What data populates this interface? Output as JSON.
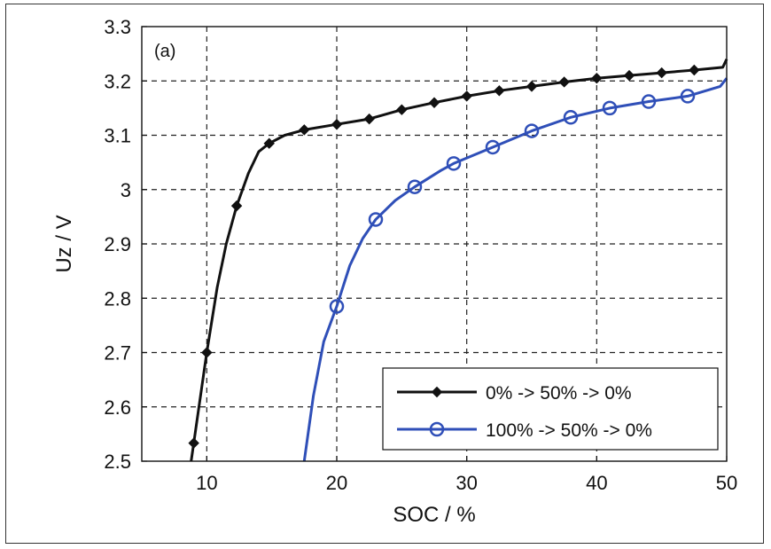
{
  "chart_data": {
    "type": "line",
    "panel_label": "(a)",
    "xlabel": "SOC / %",
    "ylabel": "Uz / V",
    "xlim": [
      5,
      50
    ],
    "ylim": [
      2.5,
      3.3
    ],
    "xticks": [
      10,
      20,
      30,
      40,
      50
    ],
    "yticks": [
      2.5,
      2.6,
      2.7,
      2.8,
      2.9,
      3,
      3.1,
      3.2,
      3.3
    ],
    "ytick_labels": [
      "2.5",
      "2.6",
      "2.7",
      "2.8",
      "2.9",
      "3",
      "3.1",
      "3.2",
      "3.3"
    ],
    "grid": true,
    "legend_position": "bottom-right",
    "series": [
      {
        "name": "0% -> 50% -> 0%",
        "color": "#111111",
        "marker": "diamond-filled",
        "x": [
          8.8,
          9.4,
          10.0,
          10.8,
          11.5,
          12.3,
          13.2,
          14.0,
          14.8,
          16.0,
          17.5,
          20,
          22.5,
          25,
          27.5,
          30,
          32.5,
          35,
          37.5,
          40,
          42.5,
          45,
          47.5,
          49.7,
          50
        ],
        "y": [
          2.5,
          2.6,
          2.7,
          2.82,
          2.9,
          2.97,
          3.03,
          3.07,
          3.085,
          3.1,
          3.11,
          3.12,
          3.13,
          3.147,
          3.16,
          3.172,
          3.182,
          3.19,
          3.198,
          3.205,
          3.21,
          3.215,
          3.22,
          3.225,
          3.24
        ]
      },
      {
        "name": "100% -> 50% -> 0%",
        "color": "#2f4fb8",
        "marker": "circle-open",
        "x": [
          17.5,
          18.2,
          19.0,
          20.0,
          21.0,
          22.0,
          23.0,
          24.5,
          26.0,
          28.0,
          29.0,
          32.0,
          35.0,
          38.0,
          41.0,
          44.0,
          47.0,
          49.5,
          50
        ],
        "y": [
          2.5,
          2.62,
          2.72,
          2.785,
          2.86,
          2.91,
          2.945,
          2.98,
          3.005,
          3.035,
          3.048,
          3.078,
          3.108,
          3.133,
          3.15,
          3.162,
          3.172,
          3.19,
          3.205
        ]
      }
    ],
    "marker_x": [
      [
        9.0,
        10.0,
        12.3,
        14.8,
        17.5,
        20,
        22.5,
        25,
        27.5,
        30,
        32.5,
        35,
        37.5,
        40,
        42.5,
        45,
        47.5
      ],
      [
        20,
        23,
        26,
        29,
        32,
        35,
        38,
        41,
        44,
        47
      ]
    ]
  }
}
